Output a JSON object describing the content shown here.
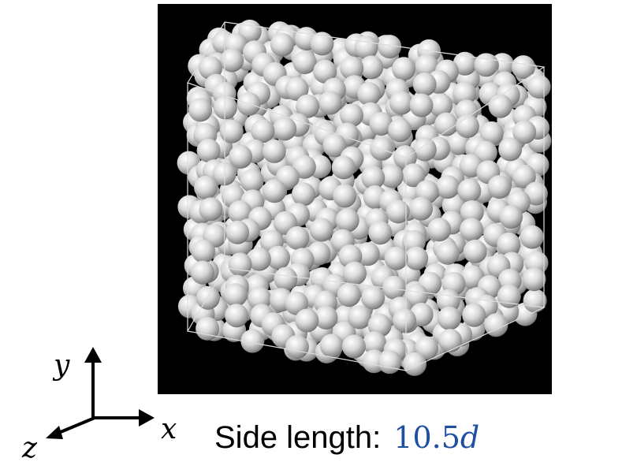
{
  "axes": {
    "y": "y",
    "x": "x",
    "z": "z"
  },
  "caption": {
    "label": "Side length:",
    "value": "10.5",
    "unit": "d"
  }
}
